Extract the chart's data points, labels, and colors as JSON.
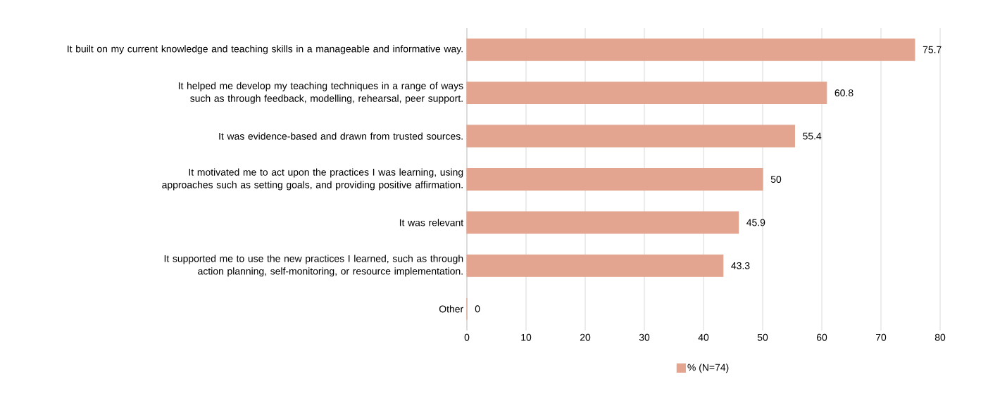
{
  "chart_data": {
    "type": "bar",
    "orientation": "horizontal",
    "categories": [
      "It built on my current knowledge and teaching skills in a manageable and informative way.",
      "It helped me develop my teaching techniques in a range of ways such as through feedback, modelling, rehearsal, peer support.",
      "It was evidence-based and drawn from trusted sources.",
      "It motivated me to act upon the practices I was learning, using approaches such as setting goals, and providing positive affirmation.",
      "It was relevant",
      "It supported me to use the new practices I learned, such as through action planning, self-monitoring, or resource implementation.",
      "Other"
    ],
    "series": [
      {
        "name": "% (N=74)",
        "color": "#e3a590",
        "values": [
          75.7,
          60.8,
          55.4,
          50,
          45.9,
          43.3,
          0
        ]
      }
    ],
    "xlim": [
      0,
      80
    ],
    "xticks": [
      0,
      10,
      20,
      30,
      40,
      50,
      60,
      70,
      80
    ],
    "grid": "x",
    "legend": "bottom",
    "data_labels": true
  }
}
